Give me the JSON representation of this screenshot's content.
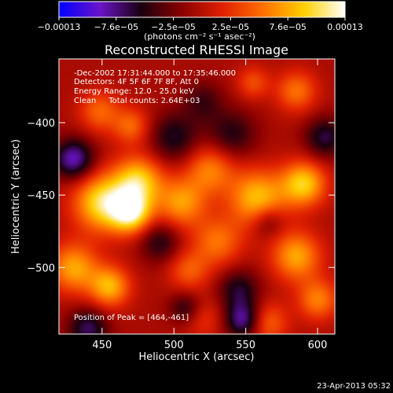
{
  "chart_data": {
    "type": "heatmap",
    "title": "Reconstructed RHESSI Image",
    "xlabel": "Heliocentric X (arcsec)",
    "ylabel": "Heliocentric Y (arcsec)",
    "xlim": [
      420,
      612
    ],
    "ylim": [
      -546,
      -356
    ],
    "x_ticks": [
      450,
      500,
      550,
      600
    ],
    "y_ticks": [
      -400,
      -450,
      -500
    ],
    "x_tick_labels": [
      "450",
      "500",
      "550",
      "600"
    ],
    "y_tick_labels": [
      "−400",
      "−450",
      "−500"
    ],
    "colorbar": {
      "range": [
        -0.00013,
        0.00013
      ],
      "tick_labels": [
        "−0.00013",
        "−7.6e−05",
        "−2.5e−05",
        "2.5e−05",
        "7.6e−05",
        "0.00013"
      ],
      "unit_label": "(photons cm⁻² s⁻¹ asec⁻²)",
      "colormap": [
        "#0000ff",
        "#6a14c8",
        "#1a0010",
        "#8a0000",
        "#e02000",
        "#ff7000",
        "#ffd000",
        "#ffffff"
      ]
    },
    "annotations": [
      "-Dec-2002 17:31:44.000 to 17:35:46.000",
      "Detectors: 4F 5F 6F 7F 8F, Att 0",
      "Energy Range: 12.0 - 25.0 keV",
      "Clean     Total counts: 2.64E+03"
    ],
    "peak_label": "Position of Peak = [464,-461]",
    "peak_position": [
      464,
      -461
    ],
    "sources": [
      {
        "x": 450,
        "y": -455,
        "amp": 1.0,
        "sigma": 14
      },
      {
        "x": 475,
        "y": -440,
        "amp": 0.9,
        "sigma": 12
      },
      {
        "x": 470,
        "y": -462,
        "amp": 1.0,
        "sigma": 10
      },
      {
        "x": 505,
        "y": -455,
        "amp": 0.7,
        "sigma": 12
      },
      {
        "x": 525,
        "y": -432,
        "amp": 0.6,
        "sigma": 12
      },
      {
        "x": 558,
        "y": -452,
        "amp": 0.85,
        "sigma": 14
      },
      {
        "x": 590,
        "y": -442,
        "amp": 0.9,
        "sigma": 11
      },
      {
        "x": 585,
        "y": -492,
        "amp": 0.75,
        "sigma": 12
      },
      {
        "x": 600,
        "y": -522,
        "amp": 0.6,
        "sigma": 10
      },
      {
        "x": 430,
        "y": -500,
        "amp": 0.75,
        "sigma": 12
      },
      {
        "x": 455,
        "y": -513,
        "amp": 0.8,
        "sigma": 10
      },
      {
        "x": 530,
        "y": -482,
        "amp": 0.55,
        "sigma": 12
      },
      {
        "x": 510,
        "y": -502,
        "amp": 0.45,
        "sigma": 10
      },
      {
        "x": 448,
        "y": -392,
        "amp": 0.5,
        "sigma": 10
      },
      {
        "x": 470,
        "y": -402,
        "amp": 0.5,
        "sigma": 9
      },
      {
        "x": 585,
        "y": -378,
        "amp": 0.55,
        "sigma": 10
      },
      {
        "x": 555,
        "y": -372,
        "amp": 0.4,
        "sigma": 8
      },
      {
        "x": 565,
        "y": -538,
        "amp": 0.5,
        "sigma": 10
      },
      {
        "x": 520,
        "y": -535,
        "amp": 0.3,
        "sigma": 10
      },
      {
        "x": 430,
        "y": -425,
        "amp": -0.8,
        "sigma": 10
      },
      {
        "x": 500,
        "y": -410,
        "amp": -0.5,
        "sigma": 12
      },
      {
        "x": 540,
        "y": -408,
        "amp": -0.45,
        "sigma": 12
      },
      {
        "x": 490,
        "y": -482,
        "amp": -0.45,
        "sigma": 10
      },
      {
        "x": 545,
        "y": -515,
        "amp": -0.5,
        "sigma": 10
      },
      {
        "x": 548,
        "y": -536,
        "amp": -0.75,
        "sigma": 9
      },
      {
        "x": 565,
        "y": -468,
        "amp": -0.4,
        "sigma": 8
      },
      {
        "x": 440,
        "y": -542,
        "amp": -0.6,
        "sigma": 10
      },
      {
        "x": 605,
        "y": -410,
        "amp": -0.55,
        "sigma": 10
      },
      {
        "x": 520,
        "y": -385,
        "amp": -0.35,
        "sigma": 10
      },
      {
        "x": 508,
        "y": -528,
        "amp": -0.45,
        "sigma": 8
      }
    ]
  },
  "footer": {
    "timestamp": "23-Apr-2013 05:32"
  }
}
